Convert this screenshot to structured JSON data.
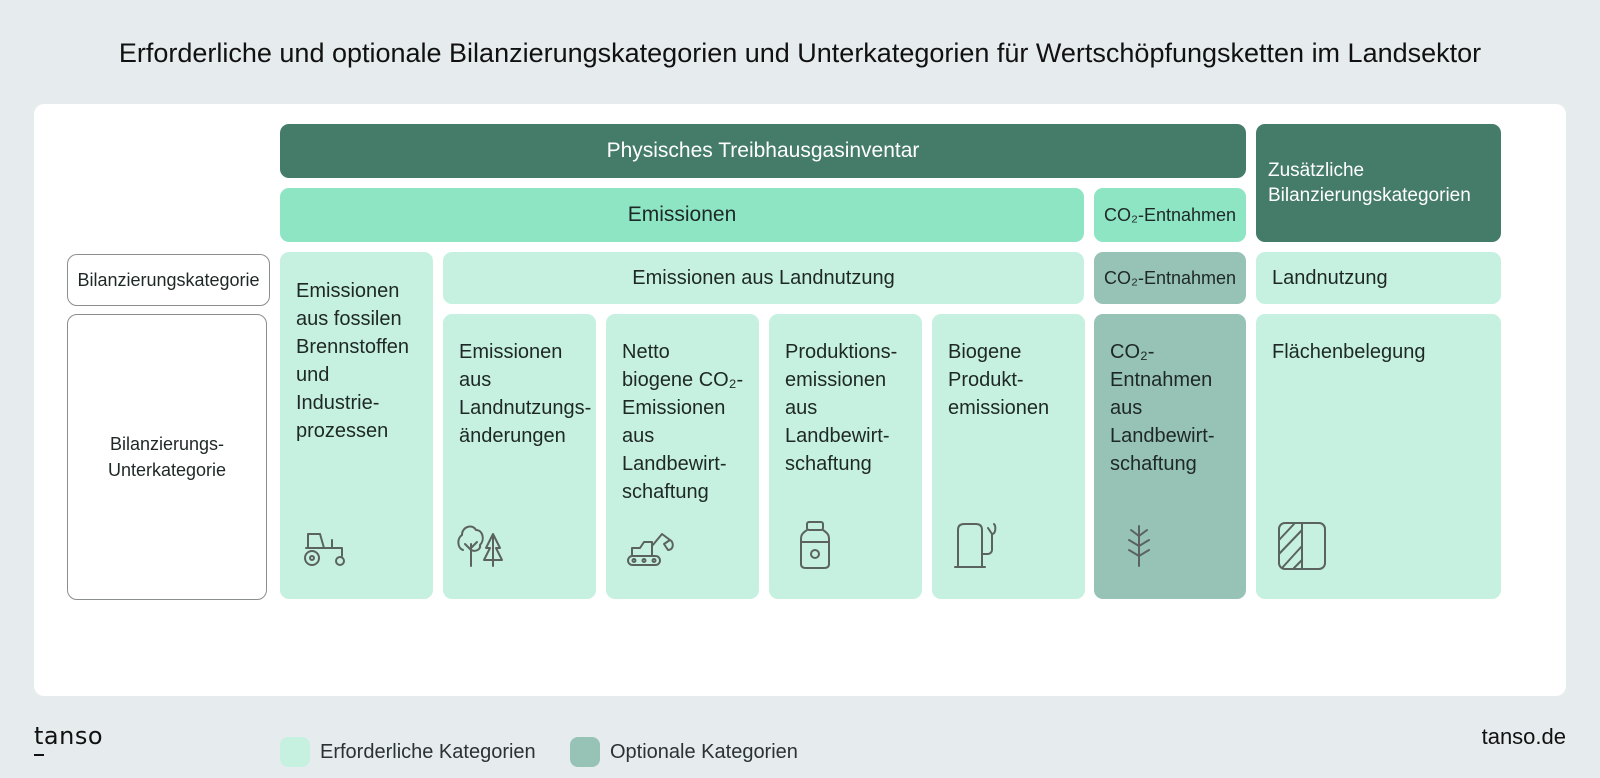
{
  "title": "Erforderliche und optionale Bilanzierungskategorien und Unterkategorien für Wertschöpfungsketten im Landsektor",
  "header": {
    "inventory": "Physisches Treibhausgasinventar",
    "additional": "Zusätzliche\nBilanzierungskategorien",
    "emissions": "Emissionen",
    "removals": "CO₂-Entnahmen"
  },
  "row_labels": {
    "category": "Bilanzierungskategorie",
    "subcategory": "Bilanzierungs-\nUnterkategorie"
  },
  "categories": {
    "land_use_emissions": "Emissionen aus Landnutzung",
    "removals": "CO₂-Entnahmen",
    "land_use": "Landnutzung"
  },
  "subcategories": [
    {
      "text": "Emissionen\naus fossilen\nBrennstoffen\nund\nIndustrie-\nprozessen",
      "icon": "tractor-icon"
    },
    {
      "text": "Emissionen\naus\nLandnutzungs-\nänderungen",
      "icon": "trees-icon"
    },
    {
      "text": "Netto\nbiogene CO₂-\nEmissionen\naus\nLandbewirt-\nschaftung",
      "icon": "excavator-icon"
    },
    {
      "text": "Produktions-\nemissionen\naus\nLandbewirt-\nschaftung",
      "icon": "jar-icon"
    },
    {
      "text": "Biogene\nProdukt-\nemissionen",
      "icon": "fuel-pump-icon"
    },
    {
      "text": "CO₂-\nEntnahmen\naus\nLandbewirt-\nschaftung",
      "icon": "plant-sprout-icon"
    },
    {
      "text": "Flächenbelegung",
      "icon": "land-area-icon"
    }
  ],
  "legend": {
    "required": "Erforderliche Kategorien",
    "optional": "Optionale Kategorien"
  },
  "colors": {
    "dark": "#447b69",
    "mid": "#8ee5c4",
    "required": "#c6f1e0",
    "optional": "#97c2b6"
  },
  "footer": {
    "logo": "tanso",
    "url": "tanso.de"
  }
}
